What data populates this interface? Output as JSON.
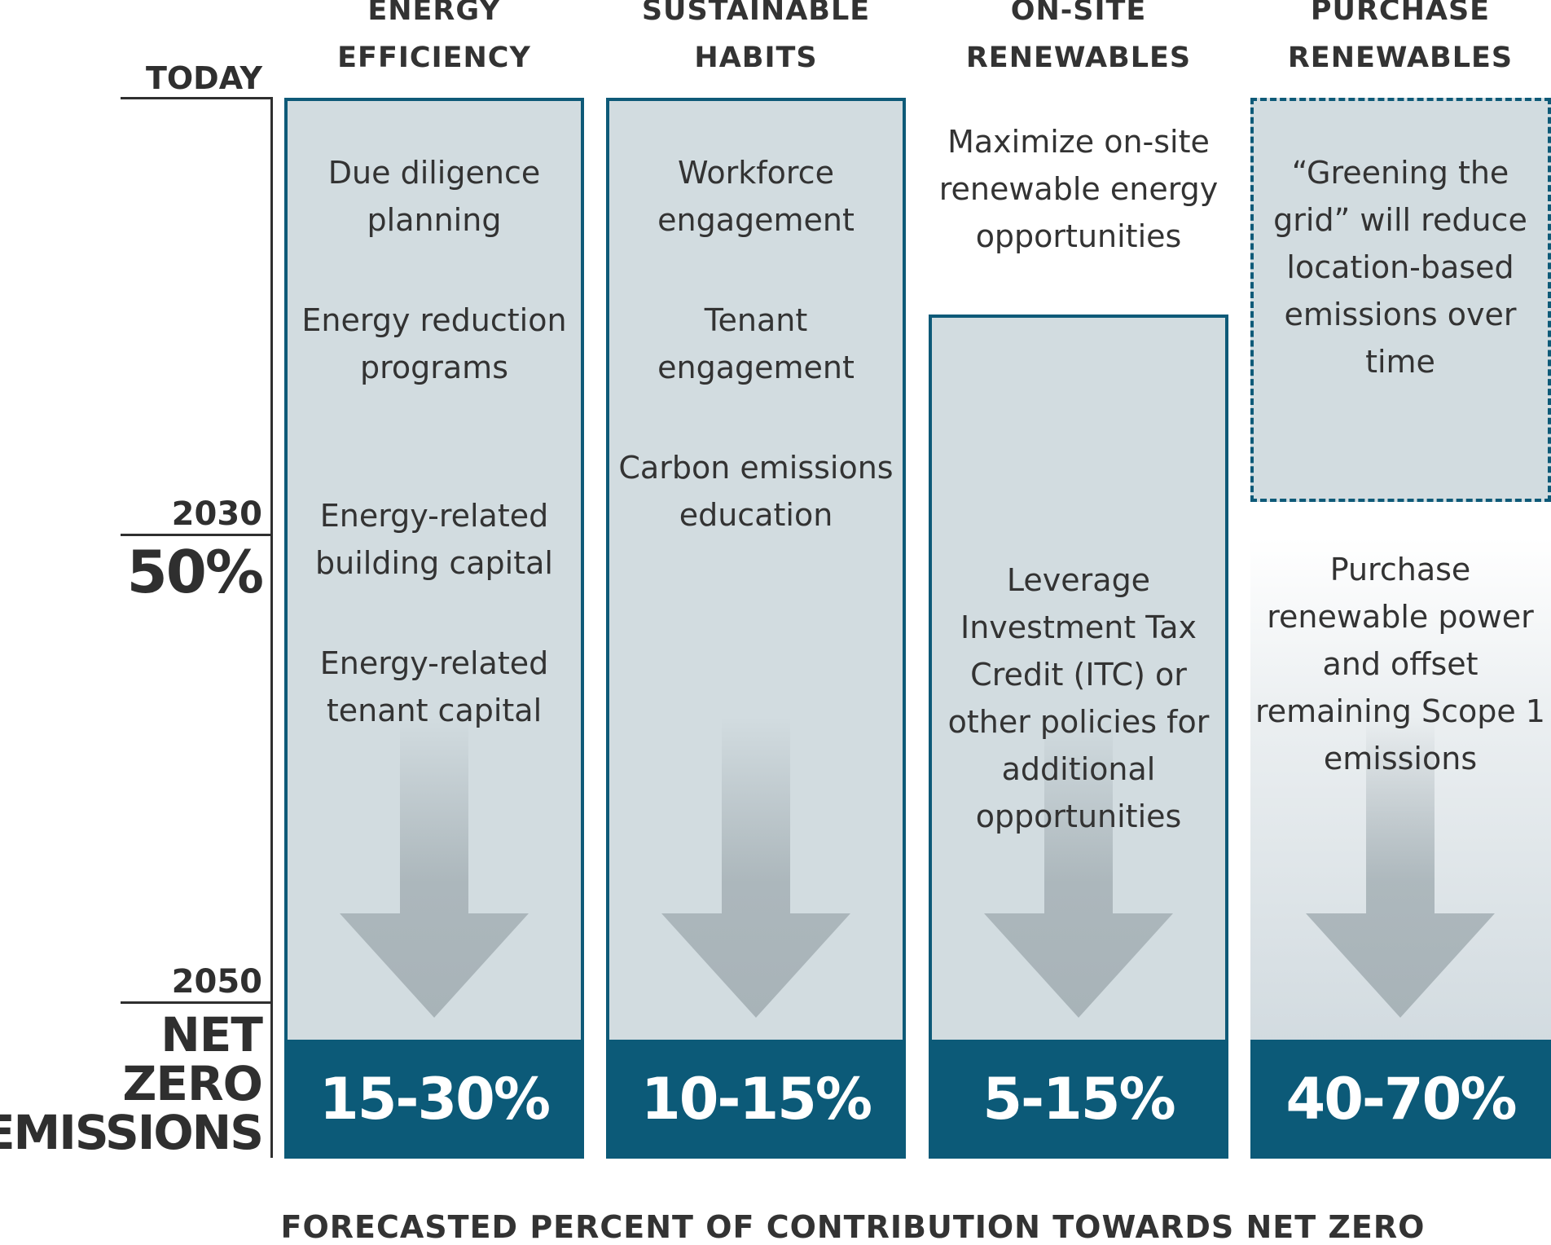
{
  "columns": [
    {
      "title_line1": "ENERGY",
      "title_line2": "EFFICIENCY",
      "items": [
        "Due diligence planning",
        "Energy reduction programs",
        "Energy-related building capital",
        "Energy-related tenant capital"
      ],
      "percent": "15-30%"
    },
    {
      "title_line1": "SUSTAINABLE",
      "title_line2": "HABITS",
      "items": [
        "Workforce engagement",
        "Tenant engagement",
        "Carbon emissions education"
      ],
      "percent": "10-15%"
    },
    {
      "title_line1": "ON-SITE",
      "title_line2": "RENEWABLES",
      "top_text": "Maximize on-site renewable energy opportunities",
      "items": [
        "Leverage Investment Tax Credit (ITC) or other policies for additional opportunities"
      ],
      "percent": "5-15%"
    },
    {
      "title_line1": "PURCHASE",
      "title_line2": "RENEWABLES",
      "top_text": "“Greening the grid” will reduce location-based emissions over time",
      "items": [
        "Purchase renewable power and offset remaining Scope 1 emissions"
      ],
      "percent": "40-70%"
    }
  ],
  "timeline": {
    "today": "TODAY",
    "year_2030": "2030",
    "target_2030": "50%",
    "year_2050": "2050",
    "net": "NET",
    "zero": "ZERO",
    "emissions": "EMISSIONS"
  },
  "caption": "FORECASTED PERCENT OF CONTRIBUTION TOWARDS NET ZERO",
  "colors": {
    "accent": "#0c5a78",
    "panel": "#d2dce0",
    "arrow": "#a8b3b8",
    "text": "#333333"
  }
}
